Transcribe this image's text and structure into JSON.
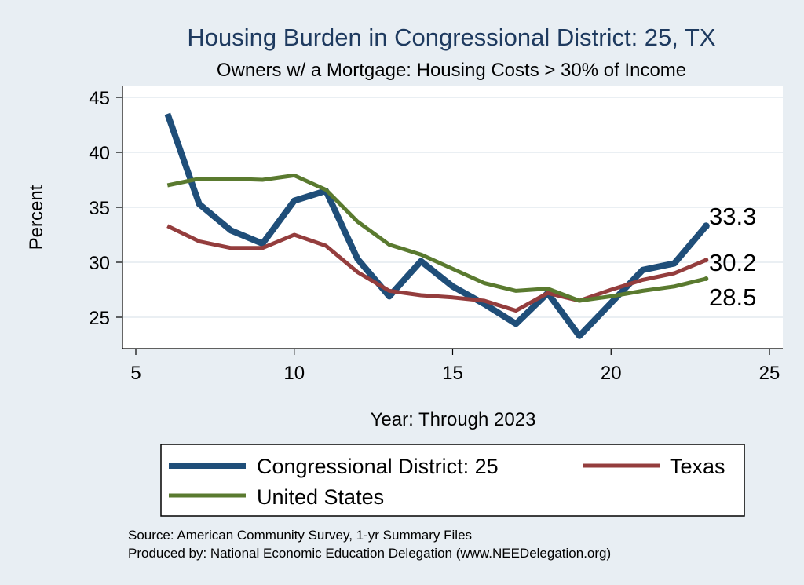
{
  "chart_data": {
    "type": "line",
    "title": "Housing Burden in Congressional District:  25, TX",
    "subtitle": "Owners w/ a Mortgage: Housing Costs > 30% of Income",
    "xlabel": "Year: Through 2023",
    "ylabel": "Percent",
    "xlim": [
      5,
      25
    ],
    "ylim": [
      22,
      46
    ],
    "x_ticks": [
      5,
      10,
      15,
      20,
      25
    ],
    "y_ticks": [
      25,
      30,
      35,
      40,
      45
    ],
    "grid": true,
    "legend_position": "bottom",
    "x": [
      6,
      7,
      8,
      9,
      10,
      11,
      12,
      13,
      14,
      15,
      16,
      17,
      18,
      19,
      20,
      21,
      22,
      23
    ],
    "series": [
      {
        "name": "Congressional District:  25",
        "color": "#1f4e79",
        "width": 8,
        "values": [
          43.5,
          35.3,
          32.9,
          31.7,
          35.6,
          36.5,
          30.3,
          26.9,
          30.1,
          27.8,
          26.2,
          24.4,
          27.2,
          23.3,
          26.3,
          29.3,
          29.9,
          33.3
        ],
        "end_label": "33.3"
      },
      {
        "name": "Texas",
        "color": "#943d3d",
        "width": 5,
        "values": [
          33.3,
          31.9,
          31.3,
          31.3,
          32.5,
          31.5,
          29.1,
          27.4,
          27.0,
          26.8,
          26.5,
          25.6,
          27.2,
          26.5,
          27.5,
          28.4,
          29.0,
          30.2
        ],
        "end_label": "30.2"
      },
      {
        "name": "United States",
        "color": "#5a7a2f",
        "width": 5,
        "values": [
          37.0,
          37.6,
          37.6,
          37.5,
          37.9,
          36.6,
          33.7,
          31.6,
          30.7,
          29.4,
          28.1,
          27.4,
          27.6,
          26.5,
          26.9,
          27.4,
          27.8,
          28.5
        ],
        "end_label": "28.5"
      }
    ]
  },
  "legend": {
    "items": [
      "Congressional District:  25",
      "Texas",
      "United States"
    ]
  },
  "footer": {
    "source": "Source: American Community Survey, 1-yr Summary Files",
    "produced": "Produced by: National Economic Education Delegation (www.NEEDelegation.org)"
  },
  "colors": {
    "background": "#e8eef3",
    "plot_background": "#ffffff",
    "grid": "#e4eaef"
  }
}
